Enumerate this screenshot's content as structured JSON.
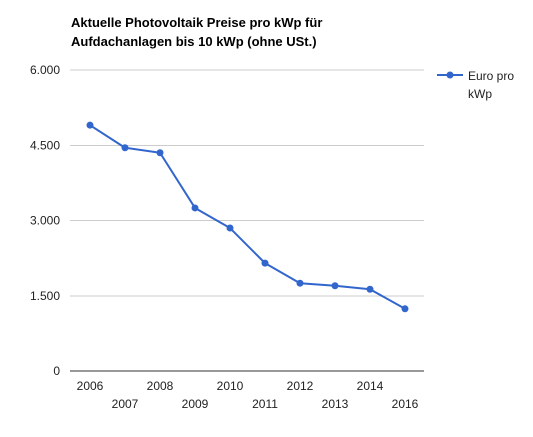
{
  "chart_data": {
    "type": "line",
    "title": [
      "Aktuelle Photovoltaik Preise pro kWp für",
      "Aufdachanlagen bis 10 kWp (ohne USt.)"
    ],
    "xlabel": "",
    "ylabel": "",
    "x": [
      "2006",
      "2007",
      "2008",
      "2009",
      "2010",
      "2011",
      "2012",
      "2013",
      "2014",
      "2016"
    ],
    "series": [
      {
        "name": [
          "Euro pro",
          "kWp"
        ],
        "values": [
          4900,
          4450,
          4350,
          3250,
          2850,
          2150,
          1750,
          1700,
          1630,
          1240
        ],
        "color": "#3366cc"
      }
    ],
    "y_ticks": [
      0,
      1500,
      3000,
      4500,
      6000
    ],
    "y_tick_labels": [
      "0",
      "1.500",
      "3.000",
      "4.500",
      "6.000"
    ],
    "ylim": [
      0,
      6000
    ],
    "grid": true,
    "legend_position": "right",
    "gridline_color": "#cccccc",
    "baseline_color": "#333333"
  }
}
